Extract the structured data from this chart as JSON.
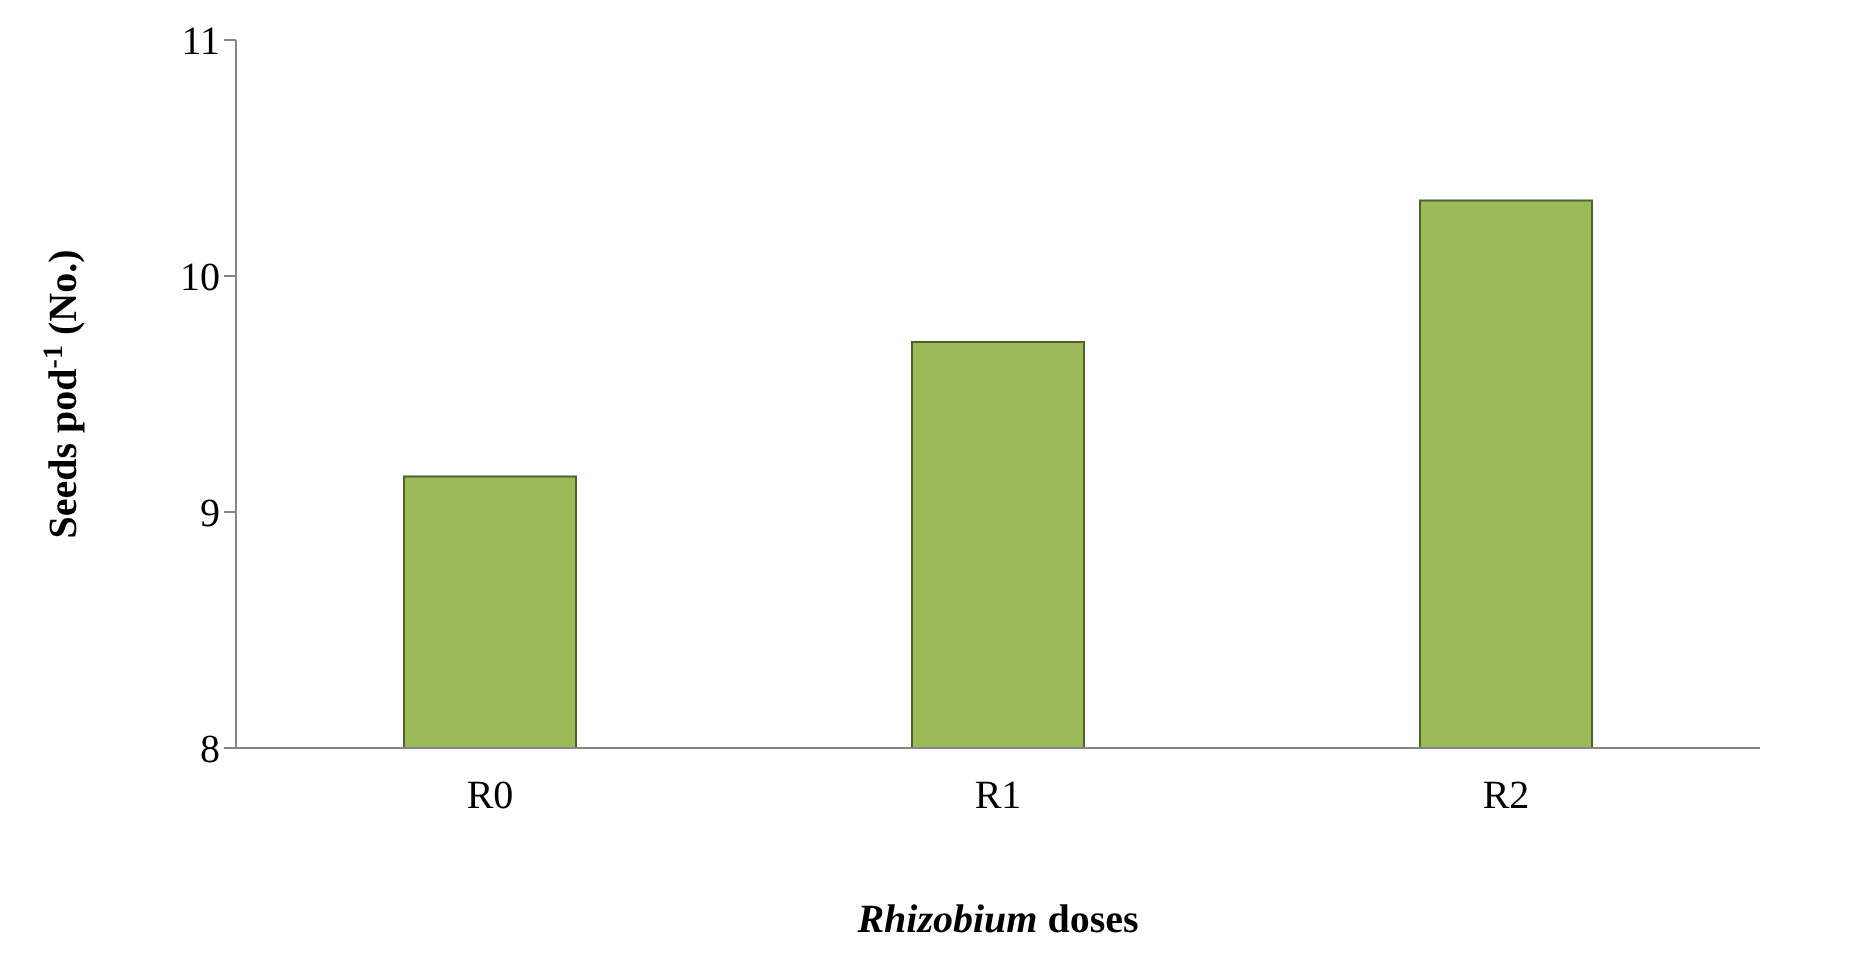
{
  "chart_data": {
    "type": "bar",
    "categories": [
      "R0",
      "R1",
      "R2"
    ],
    "values": [
      9.15,
      9.72,
      10.32
    ],
    "color": "#9bbb59",
    "ylim": [
      8,
      11
    ],
    "yticks": [
      8,
      9,
      10,
      11
    ],
    "xlabel": "Rhizobium doses",
    "ylabel": "Seeds pod$^{-1}$ (No.)",
    "grid": false
  }
}
